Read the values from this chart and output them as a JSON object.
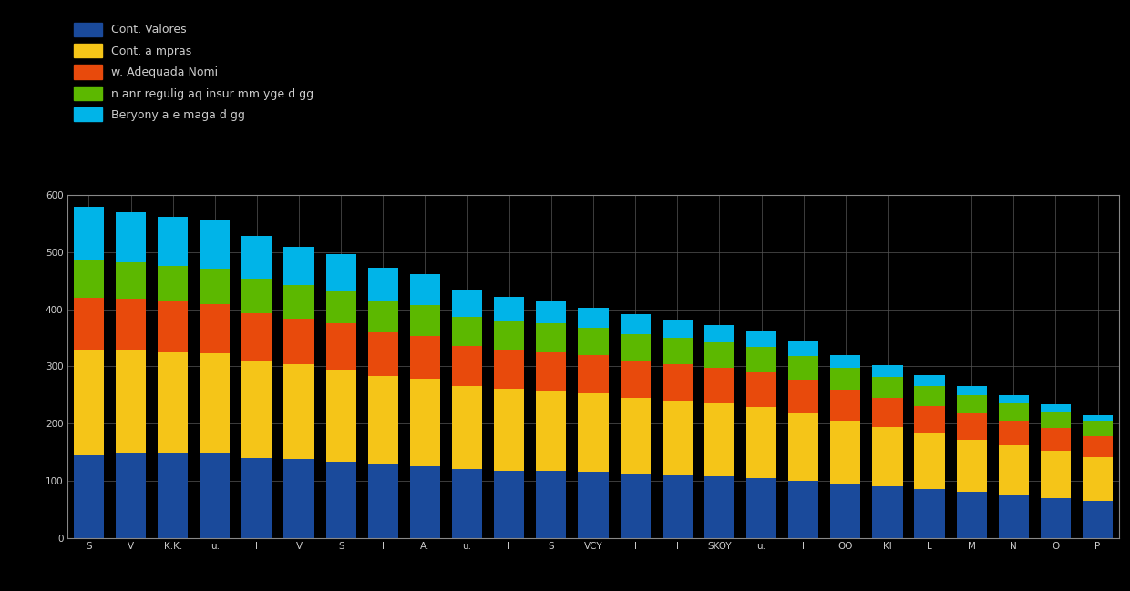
{
  "series_labels": [
    "Cont. Valores",
    "Cont. a mpras",
    "w. Adequada Nomi",
    "n anr regulig aq insur mm yge d gg",
    "Beryony a e maga d gg"
  ],
  "colors": [
    "#1a4a9b",
    "#f5c518",
    "#e84a0c",
    "#5cb800",
    "#00b4e8"
  ],
  "n_cats": 25,
  "x_labels": [
    "S",
    "V",
    "K.K.",
    "u.",
    "I",
    "V",
    "S",
    "I",
    "A.",
    "u.",
    "I",
    "S",
    "VCY",
    "I",
    "I",
    "SKOY",
    "u.",
    "I",
    "OO",
    "KI",
    "L",
    "M",
    "N",
    "O",
    "P"
  ],
  "blue_vals": [
    145,
    148,
    148,
    148,
    140,
    138,
    133,
    128,
    126,
    120,
    118,
    118,
    115,
    112,
    110,
    108,
    105,
    100,
    95,
    90,
    85,
    80,
    75,
    70,
    65
  ],
  "yellow_vals": [
    185,
    182,
    178,
    175,
    170,
    165,
    162,
    155,
    152,
    145,
    142,
    140,
    137,
    133,
    130,
    127,
    124,
    118,
    110,
    104,
    98,
    92,
    87,
    82,
    76
  ],
  "orange_vals": [
    90,
    88,
    87,
    86,
    83,
    81,
    80,
    76,
    75,
    71,
    70,
    68,
    67,
    65,
    64,
    62,
    61,
    58,
    54,
    51,
    48,
    45,
    43,
    40,
    37
  ],
  "green_vals": [
    65,
    64,
    63,
    62,
    60,
    58,
    57,
    55,
    54,
    51,
    50,
    49,
    48,
    47,
    46,
    45,
    44,
    42,
    39,
    37,
    35,
    33,
    31,
    29,
    27
  ],
  "cyan_vals": [
    95,
    88,
    86,
    85,
    75,
    68,
    65,
    58,
    55,
    48,
    42,
    38,
    36,
    34,
    32,
    30,
    28,
    25,
    22,
    20,
    18,
    16,
    14,
    12,
    10
  ],
  "ylim": [
    0,
    600
  ],
  "ytick_step": 100,
  "background_color": "#000000",
  "grid_color": "#555555",
  "text_color": "#cccccc"
}
